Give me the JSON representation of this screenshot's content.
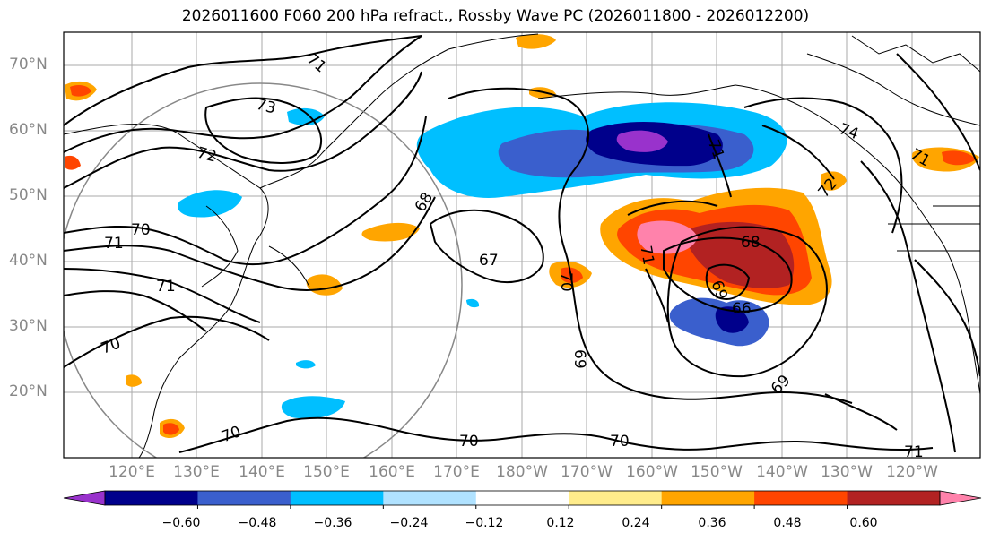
{
  "title": "2026011600 F060 200 hPa refract., Rossby Wave PC (2026011800 - 2026012200)",
  "lat_labels": [
    "70°N",
    "60°N",
    "50°N",
    "40°N",
    "30°N",
    "20°N"
  ],
  "lon_labels": [
    "120°E",
    "130°E",
    "140°E",
    "150°E",
    "160°E",
    "170°E",
    "180°W",
    "170°W",
    "160°W",
    "150°W",
    "140°W",
    "130°W",
    "120°W"
  ],
  "contour_labels": [
    "71",
    "73",
    "72",
    "70",
    "71",
    "71",
    "70",
    "68",
    "67",
    "70",
    "71",
    "69",
    "69",
    "66",
    "68",
    "72",
    "74",
    "71",
    "69",
    "70",
    "70",
    "71",
    "70",
    "71"
  ],
  "colorbar": {
    "tick_labels": [
      "−0.60",
      "−0.48",
      "−0.36",
      "−0.24",
      "−0.12",
      "0.12",
      "0.24",
      "0.36",
      "0.48",
      "0.60"
    ],
    "colors": [
      "#9932CC",
      "#00008B",
      "#3A5FCD",
      "#00BFFF",
      "#B0E2FF",
      "#FFFFFF",
      "#FFEC8B",
      "#FFA500",
      "#FF4500",
      "#B22222",
      "#FF82AB"
    ]
  }
}
